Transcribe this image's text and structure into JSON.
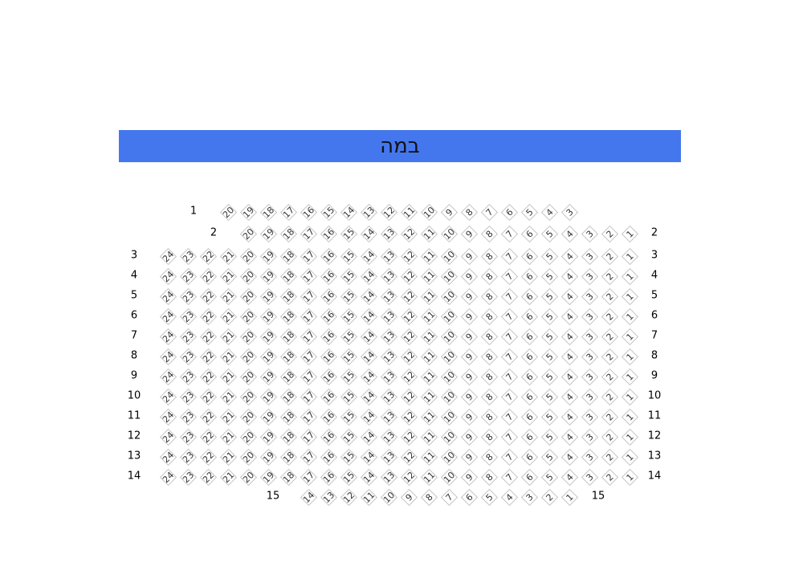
{
  "stage": {
    "label": "במה",
    "color": "#4477ee"
  },
  "rows": [
    {
      "label": "1",
      "seats": [
        20,
        19,
        18,
        17,
        16,
        15,
        14,
        13,
        12,
        11,
        10,
        9,
        8,
        7,
        6,
        5,
        4,
        3
      ]
    },
    {
      "label": "2",
      "seats": [
        20,
        19,
        18,
        17,
        16,
        15,
        14,
        13,
        12,
        11,
        10,
        9,
        8,
        7,
        6,
        5,
        4,
        3,
        2,
        1
      ]
    },
    {
      "label": "3",
      "seats": [
        24,
        23,
        22,
        21,
        20,
        19,
        18,
        17,
        16,
        15,
        14,
        13,
        12,
        11,
        10,
        9,
        8,
        7,
        6,
        5,
        4,
        3,
        2,
        1
      ]
    },
    {
      "label": "4",
      "seats": [
        24,
        23,
        22,
        21,
        20,
        19,
        18,
        17,
        16,
        15,
        14,
        13,
        12,
        11,
        10,
        9,
        8,
        7,
        6,
        5,
        4,
        3,
        2,
        1
      ]
    },
    {
      "label": "5",
      "seats": [
        24,
        23,
        22,
        21,
        20,
        19,
        18,
        17,
        16,
        15,
        14,
        13,
        12,
        11,
        10,
        9,
        8,
        7,
        6,
        5,
        4,
        3,
        2,
        1
      ]
    },
    {
      "label": "6",
      "seats": [
        24,
        23,
        22,
        21,
        20,
        19,
        18,
        17,
        16,
        15,
        14,
        13,
        12,
        11,
        10,
        9,
        8,
        7,
        6,
        5,
        4,
        3,
        2,
        1
      ]
    },
    {
      "label": "7",
      "seats": [
        24,
        23,
        22,
        21,
        20,
        19,
        18,
        17,
        16,
        15,
        14,
        13,
        12,
        11,
        10,
        9,
        8,
        7,
        6,
        5,
        4,
        3,
        2,
        1
      ]
    },
    {
      "label": "8",
      "seats": [
        24,
        23,
        22,
        21,
        20,
        19,
        18,
        17,
        16,
        15,
        14,
        13,
        12,
        11,
        10,
        9,
        8,
        7,
        6,
        5,
        4,
        3,
        2,
        1
      ]
    },
    {
      "label": "9",
      "seats": [
        24,
        23,
        22,
        21,
        20,
        19,
        18,
        17,
        16,
        15,
        14,
        13,
        12,
        11,
        10,
        9,
        8,
        7,
        6,
        5,
        4,
        3,
        2,
        1
      ]
    },
    {
      "label": "10",
      "seats": [
        24,
        23,
        22,
        21,
        20,
        19,
        18,
        17,
        16,
        15,
        14,
        13,
        12,
        11,
        10,
        9,
        8,
        7,
        6,
        5,
        4,
        3,
        2,
        1
      ]
    },
    {
      "label": "11",
      "seats": [
        24,
        23,
        22,
        21,
        20,
        19,
        18,
        17,
        16,
        15,
        14,
        13,
        12,
        11,
        10,
        9,
        8,
        7,
        6,
        5,
        4,
        3,
        2,
        1
      ]
    },
    {
      "label": "12",
      "seats": [
        24,
        23,
        22,
        21,
        20,
        19,
        18,
        17,
        16,
        15,
        14,
        13,
        12,
        11,
        10,
        9,
        8,
        7,
        6,
        5,
        4,
        3,
        2,
        1
      ]
    },
    {
      "label": "13",
      "seats": [
        24,
        23,
        22,
        21,
        20,
        19,
        18,
        17,
        16,
        15,
        14,
        13,
        12,
        11,
        10,
        9,
        8,
        7,
        6,
        5,
        4,
        3,
        2,
        1
      ]
    },
    {
      "label": "14",
      "seats": [
        24,
        23,
        22,
        21,
        20,
        19,
        18,
        17,
        16,
        15,
        14,
        13,
        12,
        11,
        10,
        9,
        8,
        7,
        6,
        5,
        4,
        3,
        2,
        1
      ]
    },
    {
      "label": "15",
      "seats": [
        14,
        13,
        12,
        11,
        10,
        9,
        8,
        7,
        6,
        5,
        4,
        3,
        2,
        1
      ]
    }
  ]
}
